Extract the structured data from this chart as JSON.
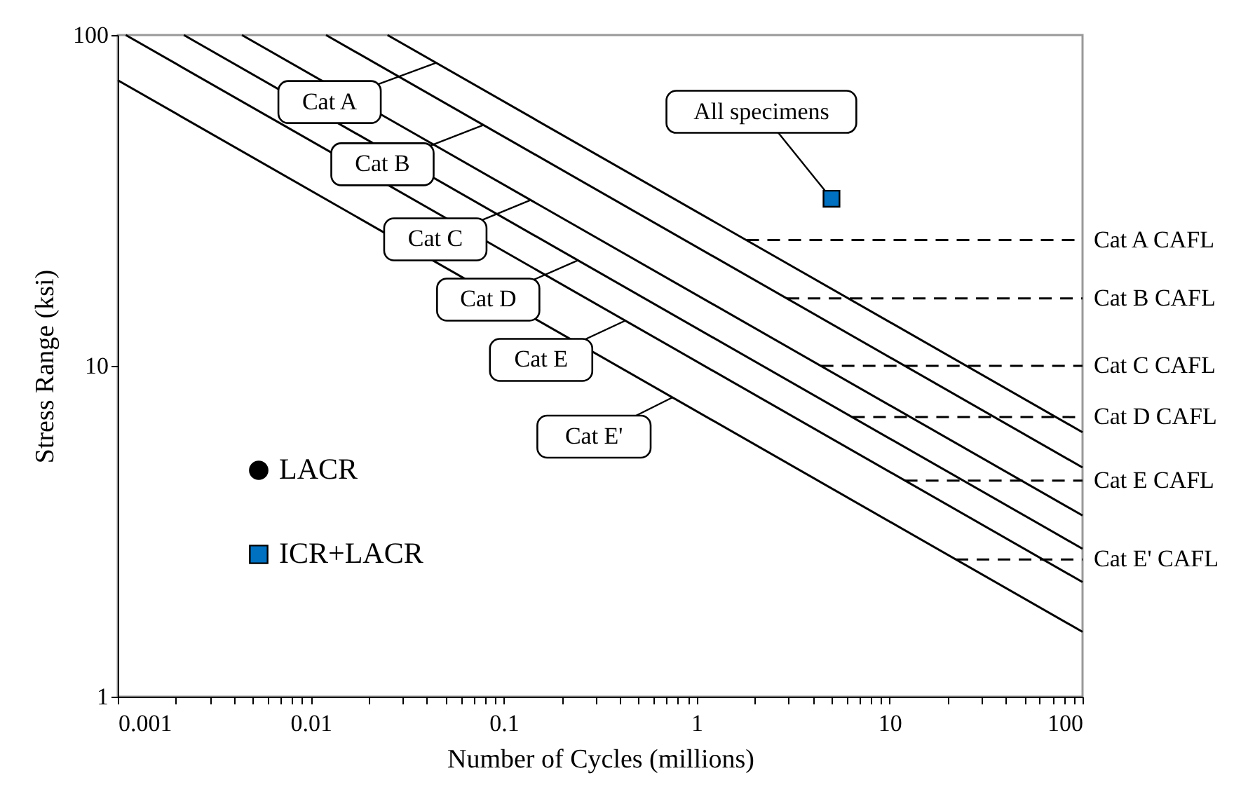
{
  "chart_data": {
    "type": "line",
    "xlabel": "Number of Cycles (millions)",
    "ylabel": "Stress Range (ksi)",
    "log": "xy",
    "xlim": [
      0.001,
      100
    ],
    "ylim": [
      1,
      100
    ],
    "xticks": [
      0.001,
      {
        "value": 0.002,
        "label": null
      },
      {
        "value": 0.003,
        "label": null
      },
      {
        "value": 0.004,
        "label": null
      },
      {
        "value": 0.005,
        "label": null
      },
      {
        "value": 0.006,
        "label": null
      },
      {
        "value": 0.007,
        "label": null
      },
      {
        "value": 0.008,
        "label": null
      },
      {
        "value": 0.009,
        "label": null
      },
      0.01,
      {
        "value": 0.02,
        "label": null
      },
      {
        "value": 0.03,
        "label": null
      },
      {
        "value": 0.04,
        "label": null
      },
      {
        "value": 0.05,
        "label": null
      },
      {
        "value": 0.06,
        "label": null
      },
      {
        "value": 0.07,
        "label": null
      },
      {
        "value": 0.08,
        "label": null
      },
      {
        "value": 0.09,
        "label": null
      },
      0.1,
      {
        "value": 0.2,
        "label": null
      },
      {
        "value": 0.3,
        "label": null
      },
      {
        "value": 0.4,
        "label": null
      },
      {
        "value": 0.5,
        "label": null
      },
      {
        "value": 0.6,
        "label": null
      },
      {
        "value": 0.7,
        "label": null
      },
      {
        "value": 0.8,
        "label": null
      },
      {
        "value": 0.9,
        "label": null
      },
      1,
      {
        "value": 2,
        "label": null
      },
      {
        "value": 3,
        "label": null
      },
      {
        "value": 4,
        "label": null
      },
      {
        "value": 5,
        "label": null
      },
      {
        "value": 6,
        "label": null
      },
      {
        "value": 7,
        "label": null
      },
      {
        "value": 8,
        "label": null
      },
      {
        "value": 9,
        "label": null
      },
      10,
      {
        "value": 20,
        "label": null
      },
      {
        "value": 30,
        "label": null
      },
      {
        "value": 40,
        "label": null
      },
      {
        "value": 50,
        "label": null
      },
      {
        "value": 60,
        "label": null
      },
      {
        "value": 70,
        "label": null
      },
      {
        "value": 80,
        "label": null
      },
      {
        "value": 90,
        "label": null
      },
      100
    ],
    "yticks": [
      1,
      10,
      100
    ],
    "legend": "bottom left",
    "series": [
      {
        "name": "Cat A",
        "color": "#000000",
        "line_style": "solid",
        "x": [
          0.025,
          100
        ],
        "values": [
          100,
          6.3
        ]
      },
      {
        "name": "Cat B",
        "color": "#000000",
        "line_style": "solid",
        "x": [
          0.012,
          100
        ],
        "values": [
          100,
          4.93
        ]
      },
      {
        "name": "Cat C",
        "color": "#000000",
        "line_style": "solid",
        "x": [
          0.0044,
          100
        ],
        "values": [
          100,
          3.53
        ]
      },
      {
        "name": "Cat D",
        "color": "#000000",
        "line_style": "solid",
        "x": [
          0.0022,
          100
        ],
        "values": [
          100,
          2.8
        ]
      },
      {
        "name": "Cat E",
        "color": "#000000",
        "line_style": "solid",
        "x": [
          0.0011,
          100
        ],
        "values": [
          100,
          2.22
        ]
      },
      {
        "name": "Cat E'",
        "color": "#000000",
        "line_style": "solid",
        "x": [
          0.001,
          100
        ],
        "values": [
          73,
          1.57
        ]
      },
      {
        "name": "Cat A CAFL",
        "color": "#000000",
        "line_style": "dashed",
        "x": [
          1.81,
          100
        ],
        "values": [
          24,
          24
        ]
      },
      {
        "name": "Cat B CAFL",
        "color": "#000000",
        "line_style": "dashed",
        "x": [
          2.93,
          100
        ],
        "values": [
          16,
          16
        ]
      },
      {
        "name": "Cat C CAFL",
        "color": "#000000",
        "line_style": "dashed",
        "x": [
          4.4,
          100
        ],
        "values": [
          10,
          10
        ]
      },
      {
        "name": "Cat D CAFL",
        "color": "#000000",
        "line_style": "dashed",
        "x": [
          6.4,
          100
        ],
        "values": [
          7,
          7
        ]
      },
      {
        "name": "Cat E CAFL",
        "color": "#000000",
        "line_style": "dashed",
        "x": [
          12,
          100
        ],
        "values": [
          4.5,
          4.5
        ]
      },
      {
        "name": "Cat E' CAFL",
        "color": "#000000",
        "line_style": "dashed",
        "x": [
          22,
          100
        ],
        "values": [
          2.6,
          2.6
        ]
      },
      {
        "name": "LACR",
        "type": "scatter",
        "color": "#000000",
        "marker": "circle"
      },
      {
        "name": "ICR+LACR",
        "type": "scatter",
        "color": "#0070c0",
        "marker": "square",
        "x": [
          5
        ],
        "values": [
          32
        ]
      }
    ],
    "annotations": [
      {
        "text": "All specimens",
        "x": 5,
        "y": 32
      }
    ]
  }
}
